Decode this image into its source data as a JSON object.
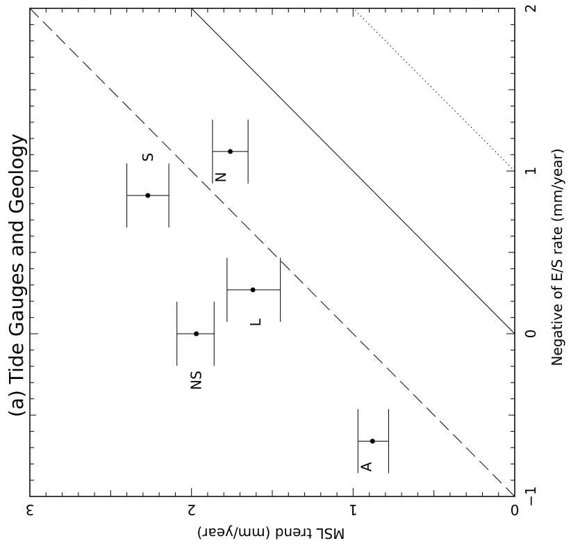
{
  "chart_data": {
    "type": "scatter",
    "title": "(a) Tide Gauges and Geology",
    "xlabel": "Negative of E/S rate (mm/year)",
    "ylabel": "MSL trend (mm/year)",
    "xlim": [
      -1,
      2
    ],
    "ylim": [
      0,
      3
    ],
    "xticks": [
      -1,
      0,
      1,
      2
    ],
    "xtick_labels": [
      "−1",
      "0",
      "1",
      "2"
    ],
    "yticks": [
      0,
      1,
      2,
      3
    ],
    "ytick_labels": [
      "0",
      "1",
      "2",
      "3"
    ],
    "grid": false,
    "orientation": "rotated 90 degrees clockwise",
    "points": [
      {
        "label": "A",
        "x": -0.66,
        "y": 0.88,
        "yerr_low": 0.78,
        "yerr_high": 0.97
      },
      {
        "label": "NS",
        "x": 0.0,
        "y": 1.97,
        "yerr_low": 1.86,
        "yerr_high": 2.09
      },
      {
        "label": "L",
        "x": 0.27,
        "y": 1.62,
        "yerr_low": 1.45,
        "yerr_high": 1.78
      },
      {
        "label": "S",
        "x": 0.85,
        "y": 2.27,
        "yerr_low": 2.14,
        "yerr_high": 2.4
      },
      {
        "label": "N",
        "x": 1.12,
        "y": 1.76,
        "yerr_low": 1.65,
        "yerr_high": 1.87
      }
    ],
    "lines": [
      {
        "style": "solid",
        "x": [
          0,
          2
        ],
        "y": [
          0,
          2
        ]
      },
      {
        "style": "dashed",
        "x": [
          -1,
          2
        ],
        "y": [
          0,
          3
        ]
      },
      {
        "style": "dotted",
        "x": [
          1,
          2
        ],
        "y": [
          0,
          1
        ]
      }
    ]
  }
}
